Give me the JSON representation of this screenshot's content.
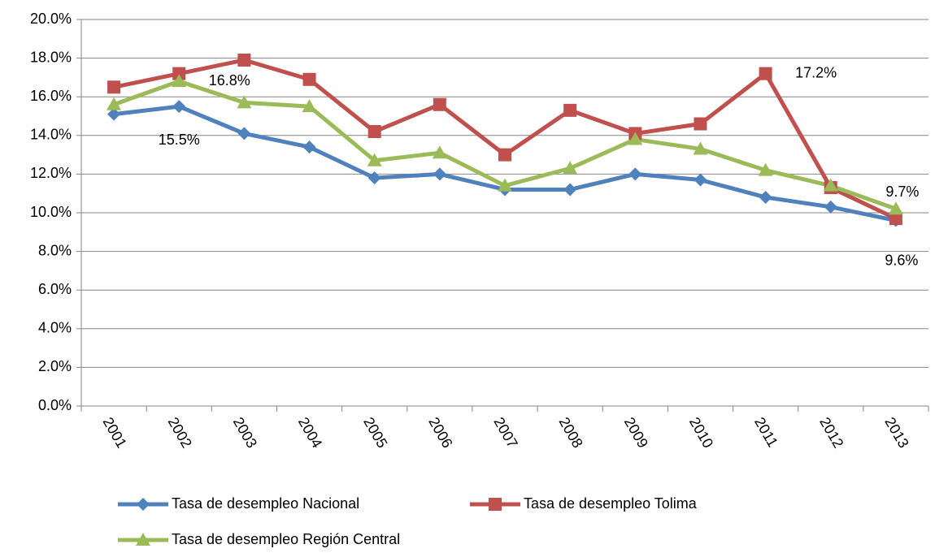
{
  "chart_data": {
    "type": "line",
    "categories": [
      "2001",
      "2002",
      "2003",
      "2004",
      "2005",
      "2006",
      "2007",
      "2008",
      "2009",
      "2010",
      "2011",
      "2012",
      "2013"
    ],
    "series": [
      {
        "name": "Tasa de desempleo Nacional",
        "color": "#4f81bd",
        "marker": "diamond",
        "values": [
          15.1,
          15.5,
          14.1,
          13.4,
          11.8,
          12.0,
          11.2,
          11.2,
          12.0,
          11.7,
          10.8,
          10.3,
          9.6
        ],
        "value_labels": [
          null,
          "15.5%",
          null,
          null,
          null,
          null,
          null,
          null,
          null,
          null,
          null,
          null,
          "9.6%"
        ]
      },
      {
        "name": "Tasa de desempleo Tolima",
        "color": "#c0504d",
        "marker": "square",
        "values": [
          16.5,
          17.2,
          17.9,
          16.9,
          14.2,
          15.6,
          13.0,
          15.3,
          14.1,
          14.6,
          17.2,
          11.3,
          9.7
        ],
        "value_labels": [
          null,
          null,
          null,
          null,
          null,
          null,
          null,
          null,
          null,
          null,
          "17.2%",
          null,
          "9.7%"
        ]
      },
      {
        "name": "Tasa de desempleo Región Central",
        "color": "#9bbb59",
        "marker": "triangle",
        "values": [
          15.6,
          16.8,
          15.7,
          15.5,
          12.7,
          13.1,
          11.4,
          12.3,
          13.8,
          13.3,
          12.2,
          11.4,
          10.2
        ],
        "value_labels": [
          null,
          "16.8%",
          null,
          null,
          null,
          null,
          null,
          null,
          null,
          null,
          null,
          null,
          null
        ]
      }
    ],
    "ylim": [
      0,
      20
    ],
    "yticks": [
      {
        "value": 0,
        "label": "0.0%"
      },
      {
        "value": 2,
        "label": "2.0%"
      },
      {
        "value": 4,
        "label": "4.0%"
      },
      {
        "value": 6,
        "label": "6.0%"
      },
      {
        "value": 8,
        "label": "8.0%"
      },
      {
        "value": 10,
        "label": "10.0%"
      },
      {
        "value": 12,
        "label": "12.0%"
      },
      {
        "value": 14,
        "label": "14.0%"
      },
      {
        "value": 16,
        "label": "16.0%"
      },
      {
        "value": 18,
        "label": "18.0%"
      },
      {
        "value": 20,
        "label": "20.0%"
      }
    ],
    "grid": true,
    "legend": "bottom"
  }
}
